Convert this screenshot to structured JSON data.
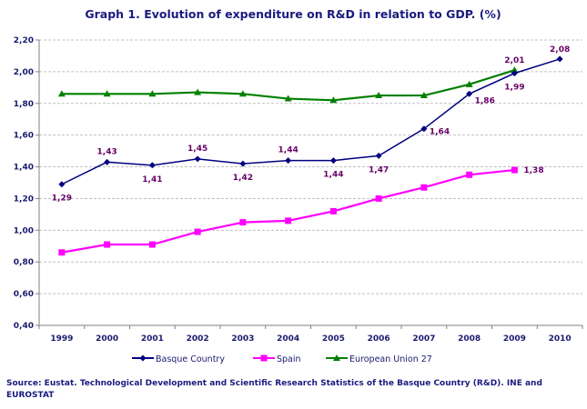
{
  "chart_data": {
    "type": "line",
    "title": "Graph 1. Evolution of expenditure on R&D in relation to GDP. (%)",
    "categories": [
      "1999",
      "2000",
      "2001",
      "2002",
      "2003",
      "2004",
      "2005",
      "2006",
      "2007",
      "2008",
      "2009",
      "2010"
    ],
    "ylim": [
      0.4,
      2.2
    ],
    "yticks": [
      "0,40",
      "0,60",
      "0,80",
      "1,00",
      "1,20",
      "1,40",
      "1,60",
      "1,80",
      "2,00",
      "2,20"
    ],
    "grid": true,
    "legend_position": "bottom",
    "series": [
      {
        "name": "Basque Country",
        "color": "#000080",
        "marker": "diamond",
        "values": [
          1.29,
          1.43,
          1.41,
          1.45,
          1.42,
          1.44,
          1.44,
          1.47,
          1.64,
          1.86,
          1.99,
          2.08
        ],
        "labels": [
          "1,29",
          "1,43",
          "1,41",
          "1,45",
          "1,42",
          "1,44",
          "1,44",
          "1,47",
          "1,64",
          "1,86",
          "1,99",
          "2,08"
        ]
      },
      {
        "name": "Spain",
        "color": "#ff00ff",
        "marker": "square",
        "values": [
          0.86,
          0.91,
          0.91,
          0.99,
          1.05,
          1.06,
          1.12,
          1.2,
          1.27,
          1.35,
          1.38,
          null
        ],
        "labels": [
          null,
          null,
          null,
          null,
          null,
          null,
          null,
          null,
          null,
          null,
          "1,38",
          null
        ]
      },
      {
        "name": "European Union 27",
        "color": "#008000",
        "marker": "triangle",
        "values": [
          1.86,
          1.86,
          1.86,
          1.87,
          1.86,
          1.83,
          1.82,
          1.85,
          1.85,
          1.92,
          2.01,
          null
        ],
        "labels": [
          null,
          null,
          null,
          null,
          null,
          null,
          null,
          null,
          null,
          null,
          "2,01",
          null
        ]
      }
    ]
  },
  "source": {
    "line1": "Source: Eustat. Technological Development and Scientific Research Statistics of the Basque Country (R&D). INE and",
    "line2": "EUROSTAT"
  }
}
